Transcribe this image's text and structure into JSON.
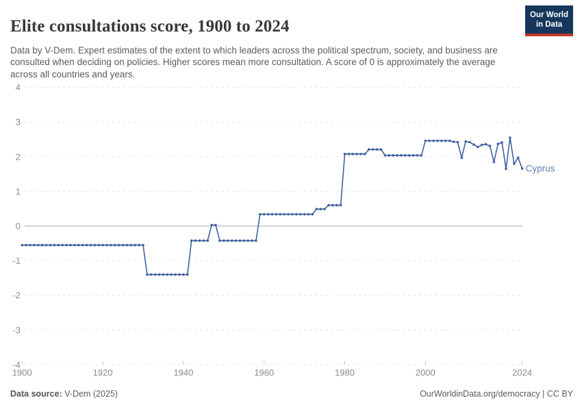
{
  "header": {
    "title": "Elite consultations score, 1900 to 2024",
    "subtitle": "Data by V-Dem. Expert estimates of the extent to which leaders across the political spectrum, society, and business are consulted when deciding on policies. Higher scores mean more consultation. A score of 0 is approximately the average across all countries and years.",
    "logo": {
      "line1": "Our World",
      "line2": "in Data"
    }
  },
  "footer": {
    "source_label": "Data source:",
    "source_value": " V-Dem (2025)",
    "attribution": "OurWorldinData.org/democracy | CC BY"
  },
  "colors": {
    "line": "#4062a0",
    "entity_label": "#5b7db4",
    "grid": "#e2e2e2",
    "zero_line": "#a5a5a5",
    "tick": "#c8c8c8",
    "axis_text": "#8b8b8b",
    "logo_bg": "#16365c",
    "logo_stripe": "#c0392b"
  },
  "chart_data": {
    "type": "line",
    "title": "Elite consultations score, 1900 to 2024",
    "entity": "Cyprus",
    "x_start": 1900,
    "x_end": 2024,
    "xticks": [
      1900,
      1920,
      1940,
      1960,
      1980,
      2000,
      2024
    ],
    "yticks": [
      4,
      3,
      2,
      1,
      0,
      -1,
      -2,
      -3,
      -4
    ],
    "ylim": [
      -4,
      4
    ],
    "grid": true,
    "legend_position": "end-of-line",
    "values": [
      -0.55,
      -0.55,
      -0.55,
      -0.55,
      -0.55,
      -0.55,
      -0.55,
      -0.55,
      -0.55,
      -0.55,
      -0.55,
      -0.55,
      -0.55,
      -0.55,
      -0.55,
      -0.55,
      -0.55,
      -0.55,
      -0.55,
      -0.55,
      -0.55,
      -0.55,
      -0.55,
      -0.55,
      -0.55,
      -0.55,
      -0.55,
      -0.55,
      -0.55,
      -0.55,
      -0.55,
      -1.4,
      -1.4,
      -1.4,
      -1.4,
      -1.4,
      -1.4,
      -1.4,
      -1.4,
      -1.4,
      -1.4,
      -1.4,
      -0.42,
      -0.42,
      -0.42,
      -0.42,
      -0.42,
      0.03,
      0.03,
      -0.42,
      -0.42,
      -0.42,
      -0.42,
      -0.42,
      -0.42,
      -0.42,
      -0.42,
      -0.42,
      -0.42,
      0.34,
      0.34,
      0.34,
      0.34,
      0.34,
      0.34,
      0.34,
      0.34,
      0.34,
      0.34,
      0.34,
      0.34,
      0.34,
      0.34,
      0.49,
      0.49,
      0.49,
      0.6,
      0.6,
      0.6,
      0.6,
      2.08,
      2.08,
      2.08,
      2.08,
      2.08,
      2.08,
      2.21,
      2.21,
      2.21,
      2.21,
      2.04,
      2.04,
      2.04,
      2.04,
      2.04,
      2.04,
      2.04,
      2.04,
      2.04,
      2.04,
      2.46,
      2.46,
      2.46,
      2.46,
      2.46,
      2.46,
      2.46,
      2.43,
      2.42,
      1.97,
      2.44,
      2.42,
      2.35,
      2.28,
      2.34,
      2.36,
      2.31,
      1.85,
      2.37,
      2.41,
      1.65,
      2.55,
      1.8,
      1.97,
      1.66
    ]
  }
}
